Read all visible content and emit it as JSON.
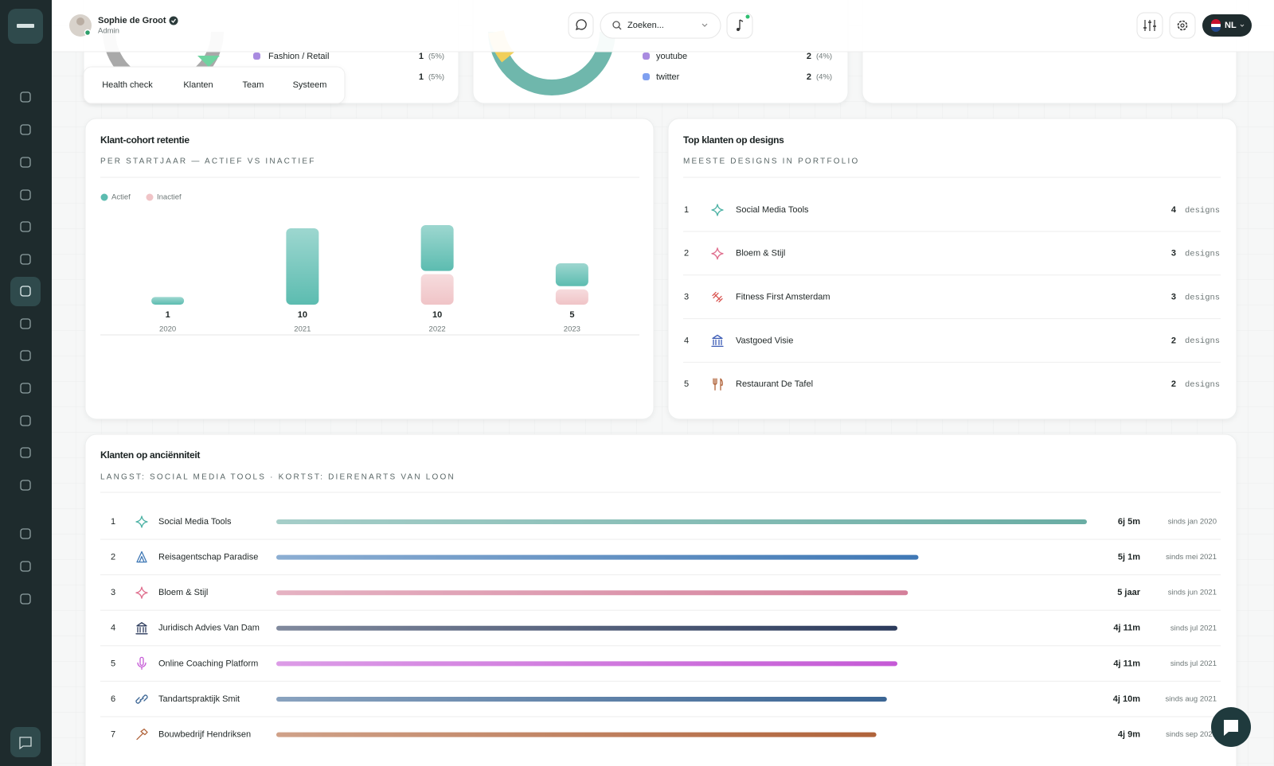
{
  "user": {
    "name": "Sophie de Groot",
    "role": "Admin"
  },
  "search_placeholder": "Zoeken...",
  "language": "NL",
  "top_cards": {
    "left_legend": [
      {
        "label": "Fashion / Retail",
        "count": 1,
        "share": "(5%)"
      },
      {
        "count": 1,
        "share": "(5%)"
      }
    ],
    "tabs": [
      "Health check",
      "Klanten",
      "Team",
      "Systeem"
    ],
    "middle_legend": [
      {
        "label": "youtube",
        "count": 2,
        "share": "(4%)"
      },
      {
        "label": "twitter",
        "count": 2,
        "share": "(4%)"
      }
    ]
  },
  "chart_data": [
    {
      "type": "bar",
      "stacked": true,
      "title": "Klant-cohort retentie",
      "subtitle": "PER STARTJAAR — ACTIEF VS INACTIEF",
      "categories": [
        "2020",
        "2021",
        "2022",
        "2023"
      ],
      "series": [
        {
          "name": "Actief",
          "color": "#5cbcb0",
          "values": [
            1,
            10,
            6,
            3
          ]
        },
        {
          "name": "Inactief",
          "color": "#f0c4c7",
          "values": [
            0,
            0,
            4,
            2
          ]
        }
      ],
      "totals": [
        1,
        10,
        10,
        5
      ]
    },
    {
      "type": "bar",
      "orientation": "horizontal",
      "title": "Klanten op anciënniteit",
      "subtitle": "LANGST: SOCIAL MEDIA TOOLS · KORTST: DIERENARTS VAN LOON",
      "ranks": [
        1,
        2,
        3,
        4,
        5,
        6,
        7
      ],
      "categories": [
        "Social Media Tools",
        "Reisagentschap Paradise",
        "Bloem & Stijl",
        "Juridisch Advies Van Dam",
        "Online Coaching Platform",
        "Tandartspraktijk Smit",
        "Bouwbedrijf Hendriksen"
      ],
      "values": [
        77,
        61,
        60,
        59,
        59,
        58,
        57
      ],
      "value_labels": [
        "6j 5m",
        "5j 1m",
        "5 jaar",
        "4j 11m",
        "4j 11m",
        "4j 10m",
        "4j 9m"
      ],
      "since": [
        "sinds jan 2020",
        "sinds mei 2021",
        "sinds jun 2021",
        "sinds jul 2021",
        "sinds jul 2021",
        "sinds aug 2021",
        "sinds sep 2021"
      ],
      "colors": [
        "#6aada4",
        "#3f78b5",
        "#d47f9a",
        "#2c3b5c",
        "#c55ad6",
        "#3b6594",
        "#b0633a"
      ]
    }
  ],
  "designs": {
    "title": "Top klanten op designs",
    "subtitle": "MEESTE DESIGNS IN PORTFOLIO",
    "unit": "designs",
    "rows": [
      {
        "rank": 1,
        "name": "Social Media Tools",
        "count": 4
      },
      {
        "rank": 2,
        "name": "Bloem & Stijl",
        "count": 3
      },
      {
        "rank": 3,
        "name": "Fitness First Amsterdam",
        "count": 3
      },
      {
        "rank": 4,
        "name": "Vastgoed Visie",
        "count": 2
      },
      {
        "rank": 5,
        "name": "Restaurant De Tafel",
        "count": 2
      }
    ]
  }
}
